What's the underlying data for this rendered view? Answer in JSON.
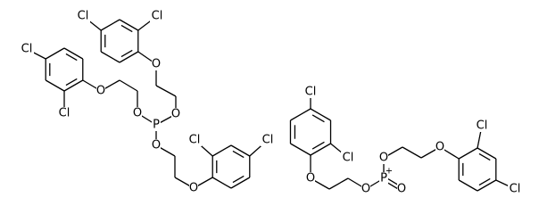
{
  "molecules": [
    {
      "atoms": [
        {
          "label": "Cl"
        },
        {
          "label": "Cl"
        },
        {
          "label": "O"
        },
        {
          "label": "O"
        },
        {
          "label": "P"
        },
        {
          "label": "Cl"
        },
        {
          "label": "Cl"
        },
        {
          "label": "O"
        },
        {
          "label": "O"
        },
        {
          "label": "O"
        },
        {
          "label": "Cl"
        },
        {
          "label": "Cl"
        },
        {
          "label": "O"
        }
      ]
    },
    {
      "atoms": [
        {
          "label": "Cl"
        },
        {
          "label": "Cl"
        },
        {
          "label": "O"
        },
        {
          "label": "O"
        },
        {
          "label": "P",
          "charge": "+"
        },
        {
          "label": "O"
        },
        {
          "label": "O"
        },
        {
          "label": "O"
        },
        {
          "label": "Cl"
        },
        {
          "label": "Cl"
        }
      ]
    }
  ]
}
